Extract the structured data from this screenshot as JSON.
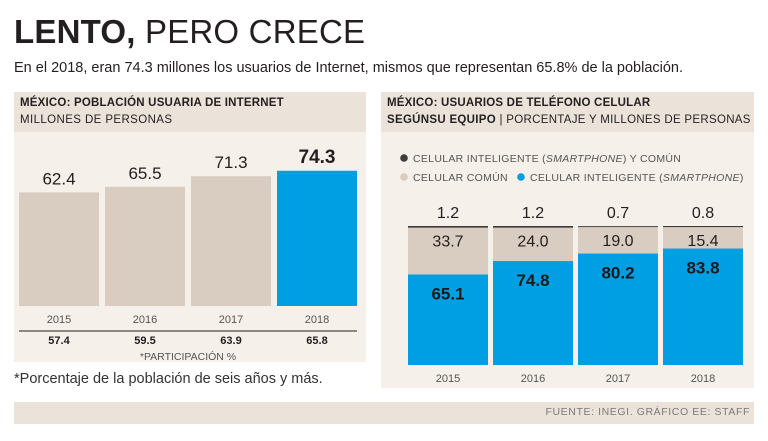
{
  "header": {
    "title_bold": "LENTO,",
    "title_rest": "PERO CRECE",
    "subtitle": "En el 2018, eran 74.3 millones los usuarios de Internet, mismos que representan 65.8% de la población."
  },
  "left_panel": {
    "title": "MÉXICO: POBLACIÓN USUARIA DE INTERNET",
    "subtitle": "MILLONES DE PERSONAS",
    "participation_label": "*PARTICIPACIÓN %"
  },
  "right_panel": {
    "title_line1": "MÉXICO: USUARIOS DE TELÉFONO CELULAR",
    "title_line2_bold": "SEGÚNSU EQUIPO",
    "title_line2_sep": "|",
    "title_line2_rest": "PORCENTAJE Y MILLONES DE PERSONAS"
  },
  "footnote": "*Porcentaje de la población de seis años y más.",
  "source": "FUENTE: INEGI. GRÁFICO EE: STAFF",
  "colors": {
    "beige_bar": "#d8cdc0",
    "blue": "#009fe3",
    "dark_dot": "#3d3d3d",
    "panel_bg": "#f5f0ea",
    "header_bg": "#ebe3da"
  },
  "chart_data": [
    {
      "type": "bar",
      "title": "MÉXICO: POBLACIÓN USUARIA DE INTERNET",
      "ylabel": "MILLONES DE PERSONAS",
      "categories": [
        "2015",
        "2016",
        "2017",
        "2018"
      ],
      "values": [
        62.4,
        65.5,
        71.3,
        74.3
      ],
      "value_labels": [
        "62.4",
        "65.5",
        "71.3",
        "74.3"
      ],
      "highlight": "2018",
      "participation": [
        "57.4",
        "59.5",
        "63.9",
        "65.8"
      ],
      "ylim": [
        0,
        100
      ]
    },
    {
      "type": "bar",
      "stacked": true,
      "title": "MÉXICO: USUARIOS DE TELÉFONO CELULAR SEGÚNSU EQUIPO",
      "categories": [
        "2015",
        "2016",
        "2017",
        "2018"
      ],
      "series": [
        {
          "name": "CELULAR INTELIGENTE (SMARTPHONE)",
          "legend_prefix": "CELULAR INTELIGENTE (",
          "legend_italic": "SMARTPHONE",
          "legend_suffix": ")",
          "values": [
            65.1,
            74.8,
            80.2,
            83.8
          ],
          "labels": [
            "65.1",
            "74.8",
            "80.2",
            "83.8"
          ],
          "color": "#009fe3"
        },
        {
          "name": "CELULAR COMÚN",
          "legend_prefix": "CELULAR COMÚN",
          "legend_italic": "",
          "legend_suffix": "",
          "values": [
            33.7,
            24.0,
            19.0,
            15.4
          ],
          "labels": [
            "33.7",
            "24.0",
            "19.0",
            "15.4"
          ],
          "color": "#d8cdc0"
        },
        {
          "name": "CELULAR INTELIGENTE (SMARTPHONE) Y COMÚN",
          "legend_prefix": "CELULAR INTELIGENTE (",
          "legend_italic": "SMARTPHONE",
          "legend_suffix": ") Y COMÚN",
          "values": [
            1.2,
            1.2,
            0.7,
            0.8
          ],
          "labels": [
            "1.2",
            "1.2",
            "0.7",
            "0.8"
          ],
          "color": "#3d3d3d"
        }
      ],
      "ylim": [
        0,
        100
      ]
    }
  ]
}
